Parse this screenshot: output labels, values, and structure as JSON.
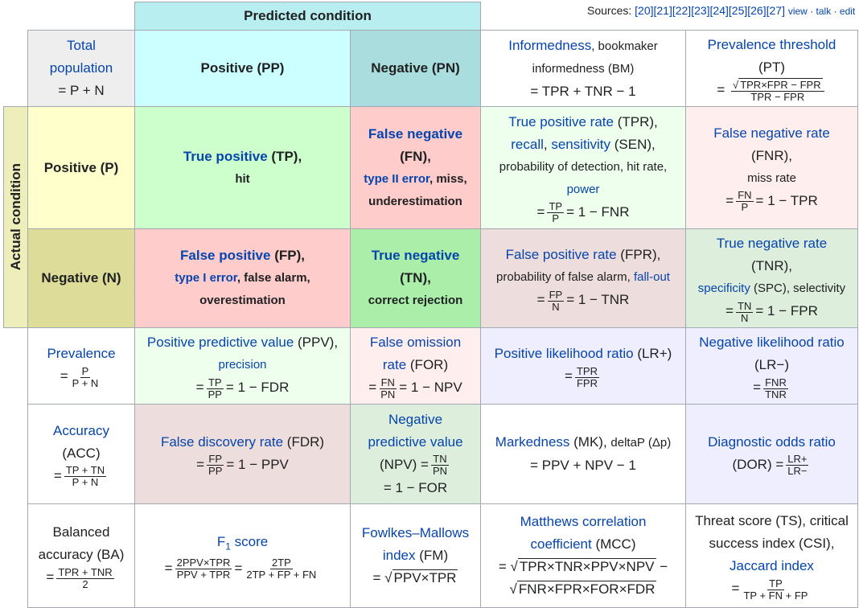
{
  "sources": {
    "label": "Sources:",
    "refs": "[20][21][22][23][24][25][26][27]",
    "view": "view",
    "talk": "talk",
    "edit": "edit"
  },
  "headers": {
    "predicted": "Predicted condition",
    "actual": "Actual condition"
  },
  "total": {
    "l1": "Total",
    "l2": "population",
    "formula": "= P + N"
  },
  "pp": "Positive (PP)",
  "pn": "Negative (PN)",
  "bm": {
    "link": "Informedness",
    "t1": ", bookmaker",
    "t2": "informedness (BM)",
    "formula": "= TPR + TNR − 1"
  },
  "pt": {
    "l1": "Prevalence threshold",
    "l2": "(PT)",
    "eq": "=",
    "num": "TPR×FPR − FPR",
    "den": "TPR − FPR"
  },
  "p": "Positive (P)",
  "n": "Negative (N)",
  "tp": {
    "link": "True positive",
    "abbr": " (TP),",
    "sub": "hit"
  },
  "fn": {
    "link": "False negative",
    "abbr": "(FN),",
    "sub_link": "type II error",
    "sub1": ", miss,",
    "sub2": "underestimation"
  },
  "tpr": {
    "link1": "True positive rate",
    "t1": " (TPR),",
    "link2": "recall",
    "t2": ", ",
    "link3": "sensitivity",
    "t3": " (SEN),",
    "t4": "probability of detection, hit rate,",
    "link4": "power",
    "eq": "=",
    "num": "TP",
    "den": "P",
    "rest": "= 1 − FNR"
  },
  "fnr": {
    "link": "False negative rate",
    "l2": "(FNR),",
    "sub": "miss rate",
    "eq": "=",
    "num": "FN",
    "den": "P",
    "rest": "= 1 − TPR"
  },
  "fp": {
    "link": "False positive",
    "abbr": " (FP),",
    "sub_link": "type I error",
    "sub1": ", false alarm,",
    "sub2": "overestimation"
  },
  "tn": {
    "link": "True negative",
    "abbr": "(TN),",
    "sub": "correct rejection"
  },
  "fpr": {
    "link": "False positive rate",
    "t1": " (FPR),",
    "t2": "probability of false alarm, ",
    "link2": "fall-out",
    "eq": "=",
    "num": "FP",
    "den": "N",
    "rest": "= 1 − TNR"
  },
  "tnr": {
    "link": "True negative rate",
    "l2": "(TNR),",
    "link2": "specificity",
    "t2": " (SPC), selectivity",
    "eq": "=",
    "num": "TN",
    "den": "N",
    "rest": "= 1 − FPR"
  },
  "prev": {
    "link": "Prevalence",
    "eq": "=",
    "num": "P",
    "den": "P + N"
  },
  "ppv": {
    "link": "Positive predictive value",
    "t1": " (PPV),",
    "link2": "precision",
    "eq": "=",
    "num": "TP",
    "den": "PP",
    "rest": "= 1 − FDR"
  },
  "for": {
    "link1": "False omission",
    "link2": "rate",
    "t1": " (FOR)",
    "eq": "=",
    "num": "FN",
    "den": "PN",
    "rest": "= 1 − NPV"
  },
  "lrp": {
    "link": "Positive likelihood ratio",
    "t1": " (LR+)",
    "eq": "=",
    "num": "TPR",
    "den": "FPR"
  },
  "lrn": {
    "link": "Negative likelihood ratio",
    "l2": "(LR−)",
    "eq": "=",
    "num": "FNR",
    "den": "TNR"
  },
  "acc": {
    "link": "Accuracy",
    "l2": "(ACC)",
    "eq": "=",
    "num": "TP + TN",
    "den": "P + N"
  },
  "fdr": {
    "link": "False discovery rate",
    "t1": " (FDR)",
    "eq": "=",
    "num": "FP",
    "den": "PP",
    "rest": "= 1 − PPV"
  },
  "npv": {
    "link1": "Negative",
    "link2": "predictive value",
    "t1": "(NPV) =",
    "num": "TN",
    "den": "PN",
    "rest": "= 1 − FOR"
  },
  "mk": {
    "link": "Markedness",
    "t1": " (MK), ",
    "t2": "deltaP (Δp)",
    "formula": "= PPV + NPV − 1"
  },
  "dor": {
    "link": "Diagnostic odds ratio",
    "t1": "(DOR) =",
    "num": "LR+",
    "den": "LR−"
  },
  "ba": {
    "l1": "Balanced",
    "l2": "accuracy (BA)",
    "eq": "=",
    "num": "TPR + TNR",
    "den": "2"
  },
  "f1": {
    "link": "F",
    "sub": "1",
    "t1": " score",
    "eq": "=",
    "num1": "2PPV×TPR",
    "den1": "PPV + TPR",
    "eq2": "=",
    "num2": "2TP",
    "den2": "2TP + FP + FN"
  },
  "fm": {
    "link1": "Fowlkes–Mallows",
    "link2": "index",
    "t1": " (FM)",
    "eq": "= √",
    "rad": "PPV×TPR"
  },
  "mcc": {
    "link1": "Matthews correlation",
    "link2": "coefficient",
    "t1": " (MCC)",
    "eq": "= √",
    "rad1": "TPR×TNR×PPV×NPV",
    "minus": " −",
    "rad0": "√",
    "rad2": "FNR×FPR×FOR×FDR"
  },
  "ts": {
    "l1": "Threat score (TS), critical",
    "l2": "success index (CSI),",
    "link": "Jaccard index",
    "eq": "=",
    "num": "TP",
    "den": "TP + FN + FP"
  },
  "colors": {
    "pred_header": "#b8eef0",
    "pp": "#ccffff",
    "pn": "#aadddd",
    "actual": "#eeeebb",
    "p": "#ffffcc",
    "n": "#dddd99",
    "tp": "#ccffcc",
    "fn": "#ffcccc",
    "fp": "#ffcccc",
    "tn": "#aaeeaa",
    "gray": "#eeeeee"
  }
}
